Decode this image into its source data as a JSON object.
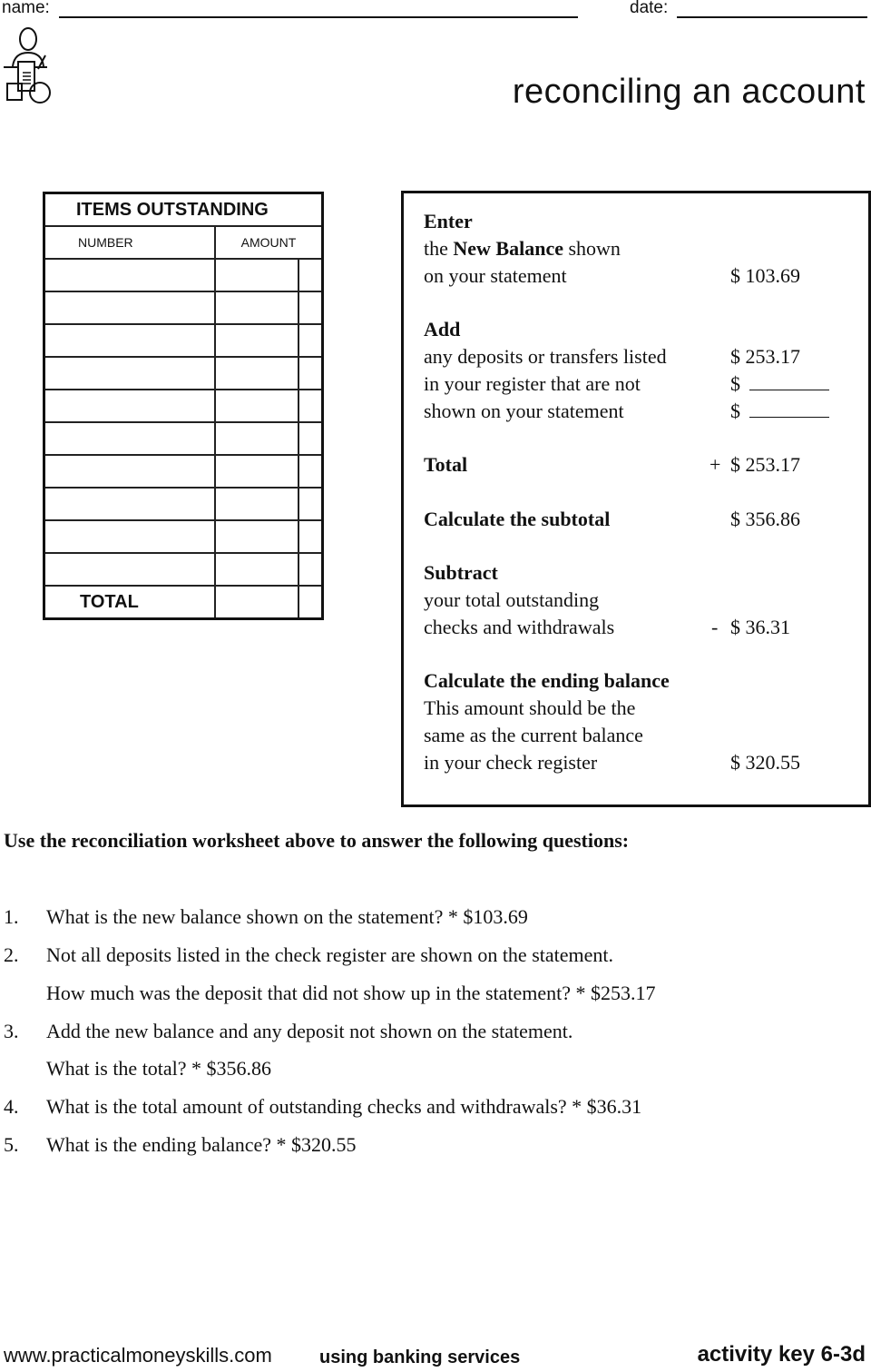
{
  "header": {
    "name_label": "name:",
    "date_label": "date:"
  },
  "title": "reconciling an account",
  "items_table": {
    "title": "ITEMS OUTSTANDING",
    "col_number": "NUMBER",
    "col_amount": "AMOUNT",
    "total_label": "TOTAL"
  },
  "worksheet": {
    "enter_heading": "Enter",
    "enter_line1_pre": "the ",
    "enter_line1_bold": "New Balance",
    "enter_line1_post": " shown",
    "enter_line2": "on your statement",
    "new_balance": "$ 103.69",
    "add_heading": "Add",
    "add_line1": "any deposits or transfers listed",
    "add_line2": "in your register that are not",
    "add_line3": "shown on your statement",
    "deposit1": "$ 253.17",
    "deposit2": "$",
    "deposit3": "$",
    "total_label": "Total",
    "total_sign": "+",
    "total_value": "$ 253.17",
    "subtotal_label": "Calculate the subtotal",
    "subtotal_value": "$ 356.86",
    "subtract_heading": "Subtract",
    "subtract_line1": "your total outstanding",
    "subtract_line2": "checks and withdrawals",
    "subtract_sign": "-",
    "subtract_value": "$ 36.31",
    "ending_heading": "Calculate the ending balance",
    "ending_line1": "This amount should be the",
    "ending_line2": "same as the current balance",
    "ending_line3": "in your check register",
    "ending_value": "$ 320.55"
  },
  "instructions": "Use the reconciliation worksheet above to answer the following questions:",
  "questions": [
    {
      "num": "1.",
      "lines": [
        "What is the new balance shown on the statement? * $103.69"
      ]
    },
    {
      "num": "2.",
      "lines": [
        "Not all deposits listed in the check register are shown on the statement.",
        "How much was the deposit that did not show up in the statement? * $253.17"
      ]
    },
    {
      "num": "3.",
      "lines": [
        "Add the new balance and any deposit not shown on the statement.",
        "What is the total? * $356.86"
      ]
    },
    {
      "num": "4.",
      "lines": [
        "What is the total amount of outstanding checks and withdrawals? * $36.31"
      ]
    },
    {
      "num": "5.",
      "lines": [
        "What is the ending balance? * $320.55"
      ]
    }
  ],
  "footer": {
    "url": "www.practicalmoneyskills.com",
    "section": "using banking services",
    "activity": "activity key 6-3d"
  }
}
